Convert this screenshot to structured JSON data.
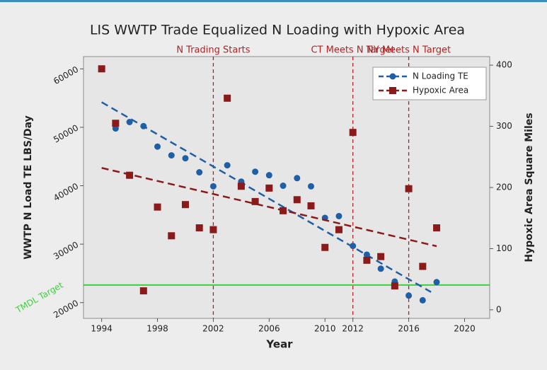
{
  "chart_data": {
    "type": "scatter",
    "title": "LIS WWTP Trade Equalized N Loading with Hypoxic Area",
    "x_label": "Year",
    "y_label": "WWTP N Load TE LBS/Day",
    "y2_label": "Hypoxic Area Square Miles",
    "x": [
      1994,
      1995,
      1996,
      1997,
      1998,
      1999,
      2000,
      2001,
      2002,
      2003,
      2004,
      2005,
      2006,
      2007,
      2008,
      2009,
      2010,
      2011,
      2012,
      2013,
      2014,
      2015,
      2016,
      2017,
      2018
    ],
    "series": [
      {
        "name": "N Loading TE",
        "color": "#1f5fa5",
        "marker": "circle",
        "axis": "y",
        "values": [
          null,
          49800,
          50900,
          50200,
          46700,
          45200,
          44700,
          42300,
          39900,
          43500,
          40700,
          42400,
          41800,
          40000,
          41300,
          39900,
          34500,
          34800,
          29700,
          28200,
          25800,
          23600,
          21200,
          20400,
          23500
        ],
        "trend": {
          "x": [
            1994,
            2017.6
          ],
          "values": [
            54300,
            21800
          ]
        }
      },
      {
        "name": "Hypoxic Area",
        "color": "#8b1a1a",
        "marker": "square",
        "axis": "y2",
        "values": [
          394,
          305,
          220,
          31,
          168,
          121,
          172,
          134,
          131,
          346,
          202,
          177,
          199,
          162,
          180,
          170,
          102,
          131,
          290,
          81,
          87,
          39,
          198,
          71,
          134
        ],
        "trend": {
          "x": [
            1994,
            2018
          ],
          "values": [
            232,
            104
          ]
        }
      }
    ],
    "xlim": [
      1992.7,
      2021.8
    ],
    "xticks": [
      1994,
      1998,
      2002,
      2006,
      2010,
      2012,
      2016,
      2020
    ],
    "ylim": [
      17300,
      62100
    ],
    "yticks": [
      20000,
      30000,
      40000,
      50000,
      60000
    ],
    "y2lim": [
      -14,
      414
    ],
    "y2ticks": [
      0,
      100,
      200,
      300,
      400
    ],
    "vlines": [
      {
        "x": 2002,
        "label": "N Trading Starts",
        "color": "#b22222"
      },
      {
        "x": 2012,
        "label": "CT Meets N Target",
        "color": "#b22222"
      },
      {
        "x": 2016,
        "label": "NY Meets N Target",
        "color": "#b22222"
      }
    ],
    "hlines": [
      {
        "y": 23000,
        "label": "TMDL Target",
        "color": "#3ccf3c"
      }
    ],
    "legend": "top-right",
    "grid": false
  }
}
